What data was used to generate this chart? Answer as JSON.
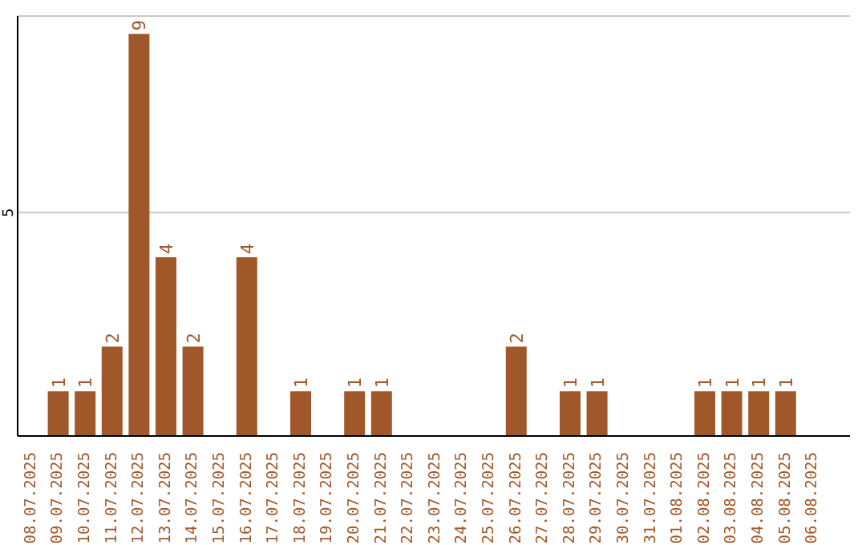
{
  "chart_data": {
    "type": "bar",
    "categories": [
      "08.07.2025",
      "09.07.2025",
      "10.07.2025",
      "11.07.2025",
      "12.07.2025",
      "13.07.2025",
      "14.07.2025",
      "15.07.2025",
      "16.07.2025",
      "17.07.2025",
      "18.07.2025",
      "19.07.2025",
      "20.07.2025",
      "21.07.2025",
      "22.07.2025",
      "23.07.2025",
      "24.07.2025",
      "25.07.2025",
      "26.07.2025",
      "27.07.2025",
      "28.07.2025",
      "29.07.2025",
      "30.07.2025",
      "31.07.2025",
      "01.08.2025",
      "02.08.2025",
      "03.08.2025",
      "04.08.2025",
      "05.08.2025",
      "06.08.2025"
    ],
    "values": [
      0,
      1,
      1,
      2,
      9,
      4,
      2,
      0,
      4,
      0,
      1,
      0,
      1,
      1,
      0,
      0,
      0,
      0,
      2,
      0,
      1,
      1,
      0,
      0,
      0,
      1,
      1,
      1,
      1,
      0
    ],
    "value_labels": [
      null,
      "1",
      "1",
      "2",
      "9",
      "4",
      "2",
      null,
      "4",
      null,
      "1",
      null,
      "1",
      "1",
      null,
      null,
      null,
      null,
      "2",
      null,
      "1",
      "1",
      null,
      null,
      null,
      "1",
      "1",
      "1",
      "1",
      null
    ],
    "color": "#a0572a",
    "ylim": [
      0,
      9.4
    ],
    "yticks": [
      5
    ],
    "grid": "y"
  }
}
